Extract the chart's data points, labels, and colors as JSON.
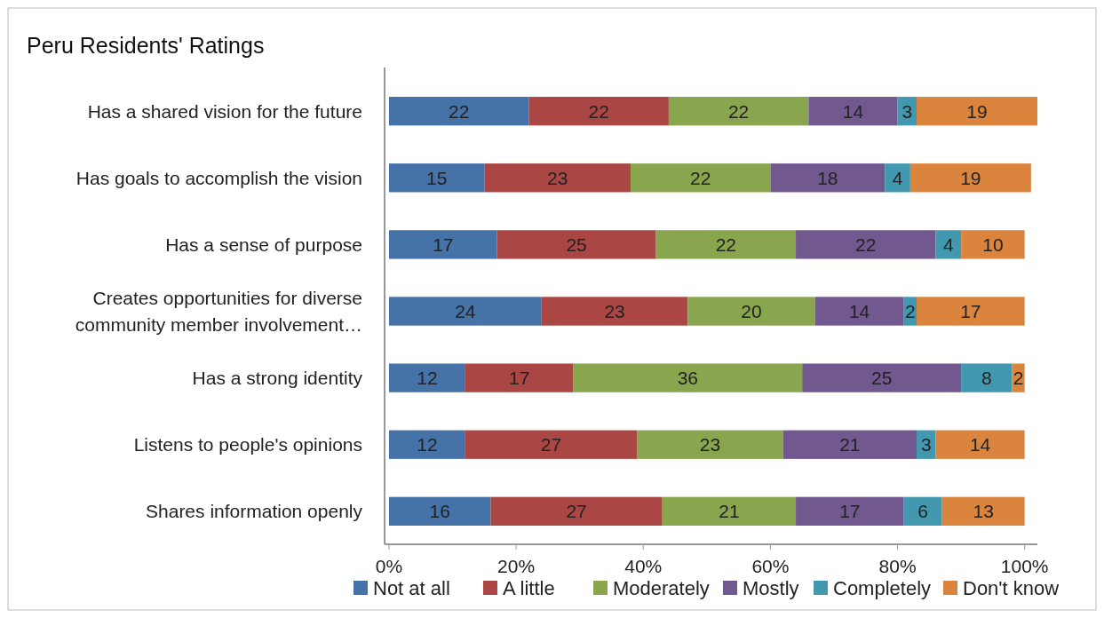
{
  "chart_data": {
    "type": "bar",
    "orientation": "horizontal",
    "stacked": true,
    "title": "Peru Residents' Ratings",
    "categories": [
      "Has a shared vision for the future",
      "Has goals to accomplish the vision",
      "Has a sense of purpose",
      "Creates opportunities for diverse community member involvement…",
      "Has a strong identity",
      "Listens to people's opinions",
      "Shares information openly"
    ],
    "series": [
      {
        "name": "Not at all",
        "color": "#4572a7",
        "values": [
          22,
          15,
          17,
          24,
          12,
          12,
          16
        ]
      },
      {
        "name": "A little",
        "color": "#aa4643",
        "values": [
          22,
          23,
          25,
          23,
          17,
          27,
          27
        ]
      },
      {
        "name": "Moderately",
        "color": "#89a54e",
        "values": [
          22,
          22,
          22,
          20,
          36,
          23,
          21
        ]
      },
      {
        "name": "Mostly",
        "color": "#71588f",
        "values": [
          14,
          18,
          22,
          14,
          25,
          21,
          17
        ]
      },
      {
        "name": "Completely",
        "color": "#4198af",
        "values": [
          3,
          4,
          4,
          2,
          8,
          3,
          6
        ]
      },
      {
        "name": "Don't know",
        "color": "#db843d",
        "values": [
          19,
          19,
          10,
          17,
          2,
          14,
          13
        ]
      }
    ],
    "xlim": [
      0,
      102
    ],
    "xticks": [
      {
        "value": 0,
        "label": "0%"
      },
      {
        "value": 20,
        "label": "20%"
      },
      {
        "value": 40,
        "label": "40%"
      },
      {
        "value": 60,
        "label": "60%"
      },
      {
        "value": 80,
        "label": "80%"
      },
      {
        "value": 100,
        "label": "100%"
      }
    ],
    "data_labels": true,
    "grid": false,
    "legend": "bottom"
  }
}
